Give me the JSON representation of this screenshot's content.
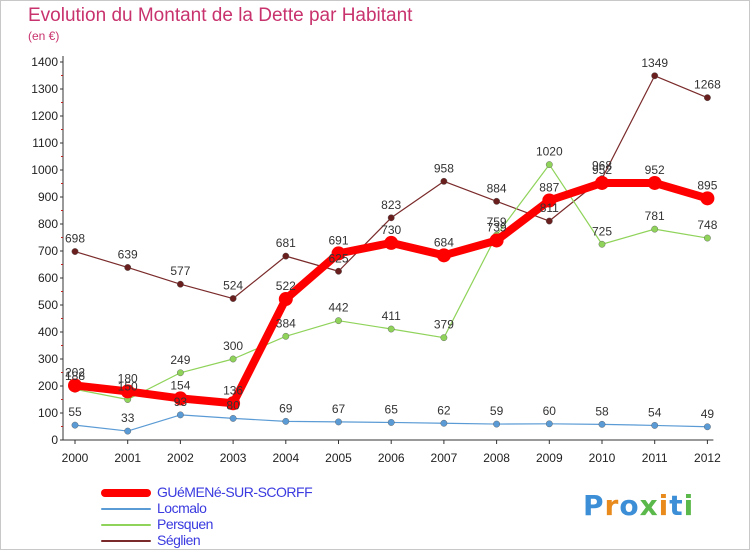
{
  "title": "Evolution du Montant de la Dette par Habitant",
  "subtitle": "(en €)",
  "logo": {
    "text": "Proxiti"
  },
  "chart_data": {
    "type": "line",
    "title": "Evolution du Montant de la Dette par Habitant",
    "subtitle": "(en €)",
    "xlabel": "",
    "ylabel": "",
    "x": [
      2000,
      2001,
      2002,
      2003,
      2004,
      2005,
      2006,
      2007,
      2008,
      2009,
      2010,
      2011,
      2012
    ],
    "ylim": [
      0,
      1400
    ],
    "yticks": [
      0,
      100,
      200,
      300,
      400,
      500,
      600,
      700,
      800,
      900,
      1000,
      1100,
      1200,
      1300,
      1400
    ],
    "grid": false,
    "legend_position": "bottom-left",
    "series": [
      {
        "name": "GUéMENé-SUR-SCORFF",
        "color": "#ff0000",
        "values": [
          202,
          180,
          154,
          136,
          522,
          691,
          730,
          684,
          739,
          887,
          952,
          952,
          895
        ]
      },
      {
        "name": "Locmalo",
        "color": "#5b9bd5",
        "values": [
          55,
          33,
          93,
          80,
          69,
          67,
          65,
          62,
          59,
          60,
          58,
          54,
          49
        ]
      },
      {
        "name": "Persquen",
        "color": "#8fd35a",
        "values": [
          188,
          150,
          249,
          300,
          384,
          442,
          411,
          379,
          759,
          1020,
          725,
          781,
          748
        ]
      },
      {
        "name": "Séglien",
        "color": "#7a2a2a",
        "values": [
          698,
          639,
          577,
          524,
          681,
          625,
          823,
          958,
          884,
          811,
          968,
          1349,
          1268
        ]
      }
    ],
    "data_labels": [
      [
        "202",
        "180",
        "154",
        "136",
        "522",
        "691",
        "730",
        "684",
        "739",
        "887",
        "952",
        "952",
        "895"
      ],
      [
        "55",
        "33",
        "93",
        "80",
        "69",
        "67",
        "65",
        "62",
        "59",
        "60",
        "58",
        "54",
        "49"
      ],
      [
        "188",
        "150",
        "249",
        "300",
        "384",
        "442",
        "411",
        "379",
        "759",
        "1020",
        "725",
        "781",
        "748"
      ],
      [
        "698",
        "639",
        "577",
        "524",
        "681",
        "625",
        "823",
        "958",
        "884",
        "811",
        "968",
        "1349",
        "1268"
      ]
    ]
  }
}
